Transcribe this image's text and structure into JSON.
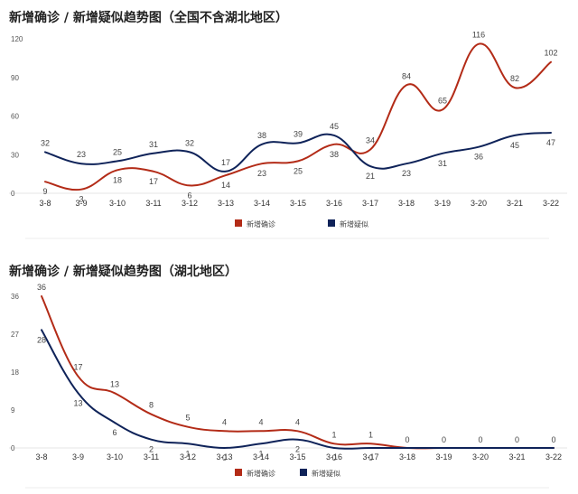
{
  "colors": {
    "confirmed": "#b32b17",
    "suspected": "#0f2359",
    "axis": "#e0e0e0",
    "text": "#444444"
  },
  "chart_data": [
    {
      "type": "line",
      "title": "新增确诊 / 新增疑似趋势图（全国不含湖北地区）",
      "categories": [
        "3-8",
        "3-9",
        "3-10",
        "3-11",
        "3-12",
        "3-13",
        "3-14",
        "3-15",
        "3-16",
        "3-17",
        "3-18",
        "3-19",
        "3-20",
        "3-21",
        "3-22"
      ],
      "yticks": [
        "0",
        "30",
        "60",
        "90",
        "120"
      ],
      "ylim": [
        0,
        120
      ],
      "series": [
        {
          "name": "新增确诊",
          "values": [
            9,
            3,
            18,
            17,
            6,
            14,
            23,
            25,
            38,
            34,
            84,
            65,
            116,
            82,
            102
          ]
        },
        {
          "name": "新增疑似",
          "values": [
            32,
            23,
            25,
            31,
            32,
            17,
            38,
            39,
            45,
            21,
            23,
            31,
            36,
            45,
            47
          ]
        }
      ],
      "legend": "bottom-center",
      "grid": false
    },
    {
      "type": "line",
      "title": "新增确诊 / 新增疑似趋势图（湖北地区）",
      "categories": [
        "3-8",
        "3-9",
        "3-10",
        "3-11",
        "3-12",
        "3-13",
        "3-14",
        "3-15",
        "3-16",
        "3-17",
        "3-18",
        "3-19",
        "3-20",
        "3-21",
        "3-22"
      ],
      "yticks": [
        "0",
        "9",
        "18",
        "27",
        "36"
      ],
      "ylim": [
        0,
        36
      ],
      "series": [
        {
          "name": "新增确诊",
          "values": [
            36,
            17,
            13,
            8,
            5,
            4,
            4,
            4,
            1,
            1,
            0,
            0,
            0,
            0,
            0
          ]
        },
        {
          "name": "新增疑似",
          "values": [
            28,
            13,
            6,
            2,
            1,
            0,
            1,
            2,
            0,
            0,
            0,
            0,
            0,
            0,
            0
          ]
        }
      ],
      "legend": "bottom-center",
      "grid": false
    }
  ]
}
